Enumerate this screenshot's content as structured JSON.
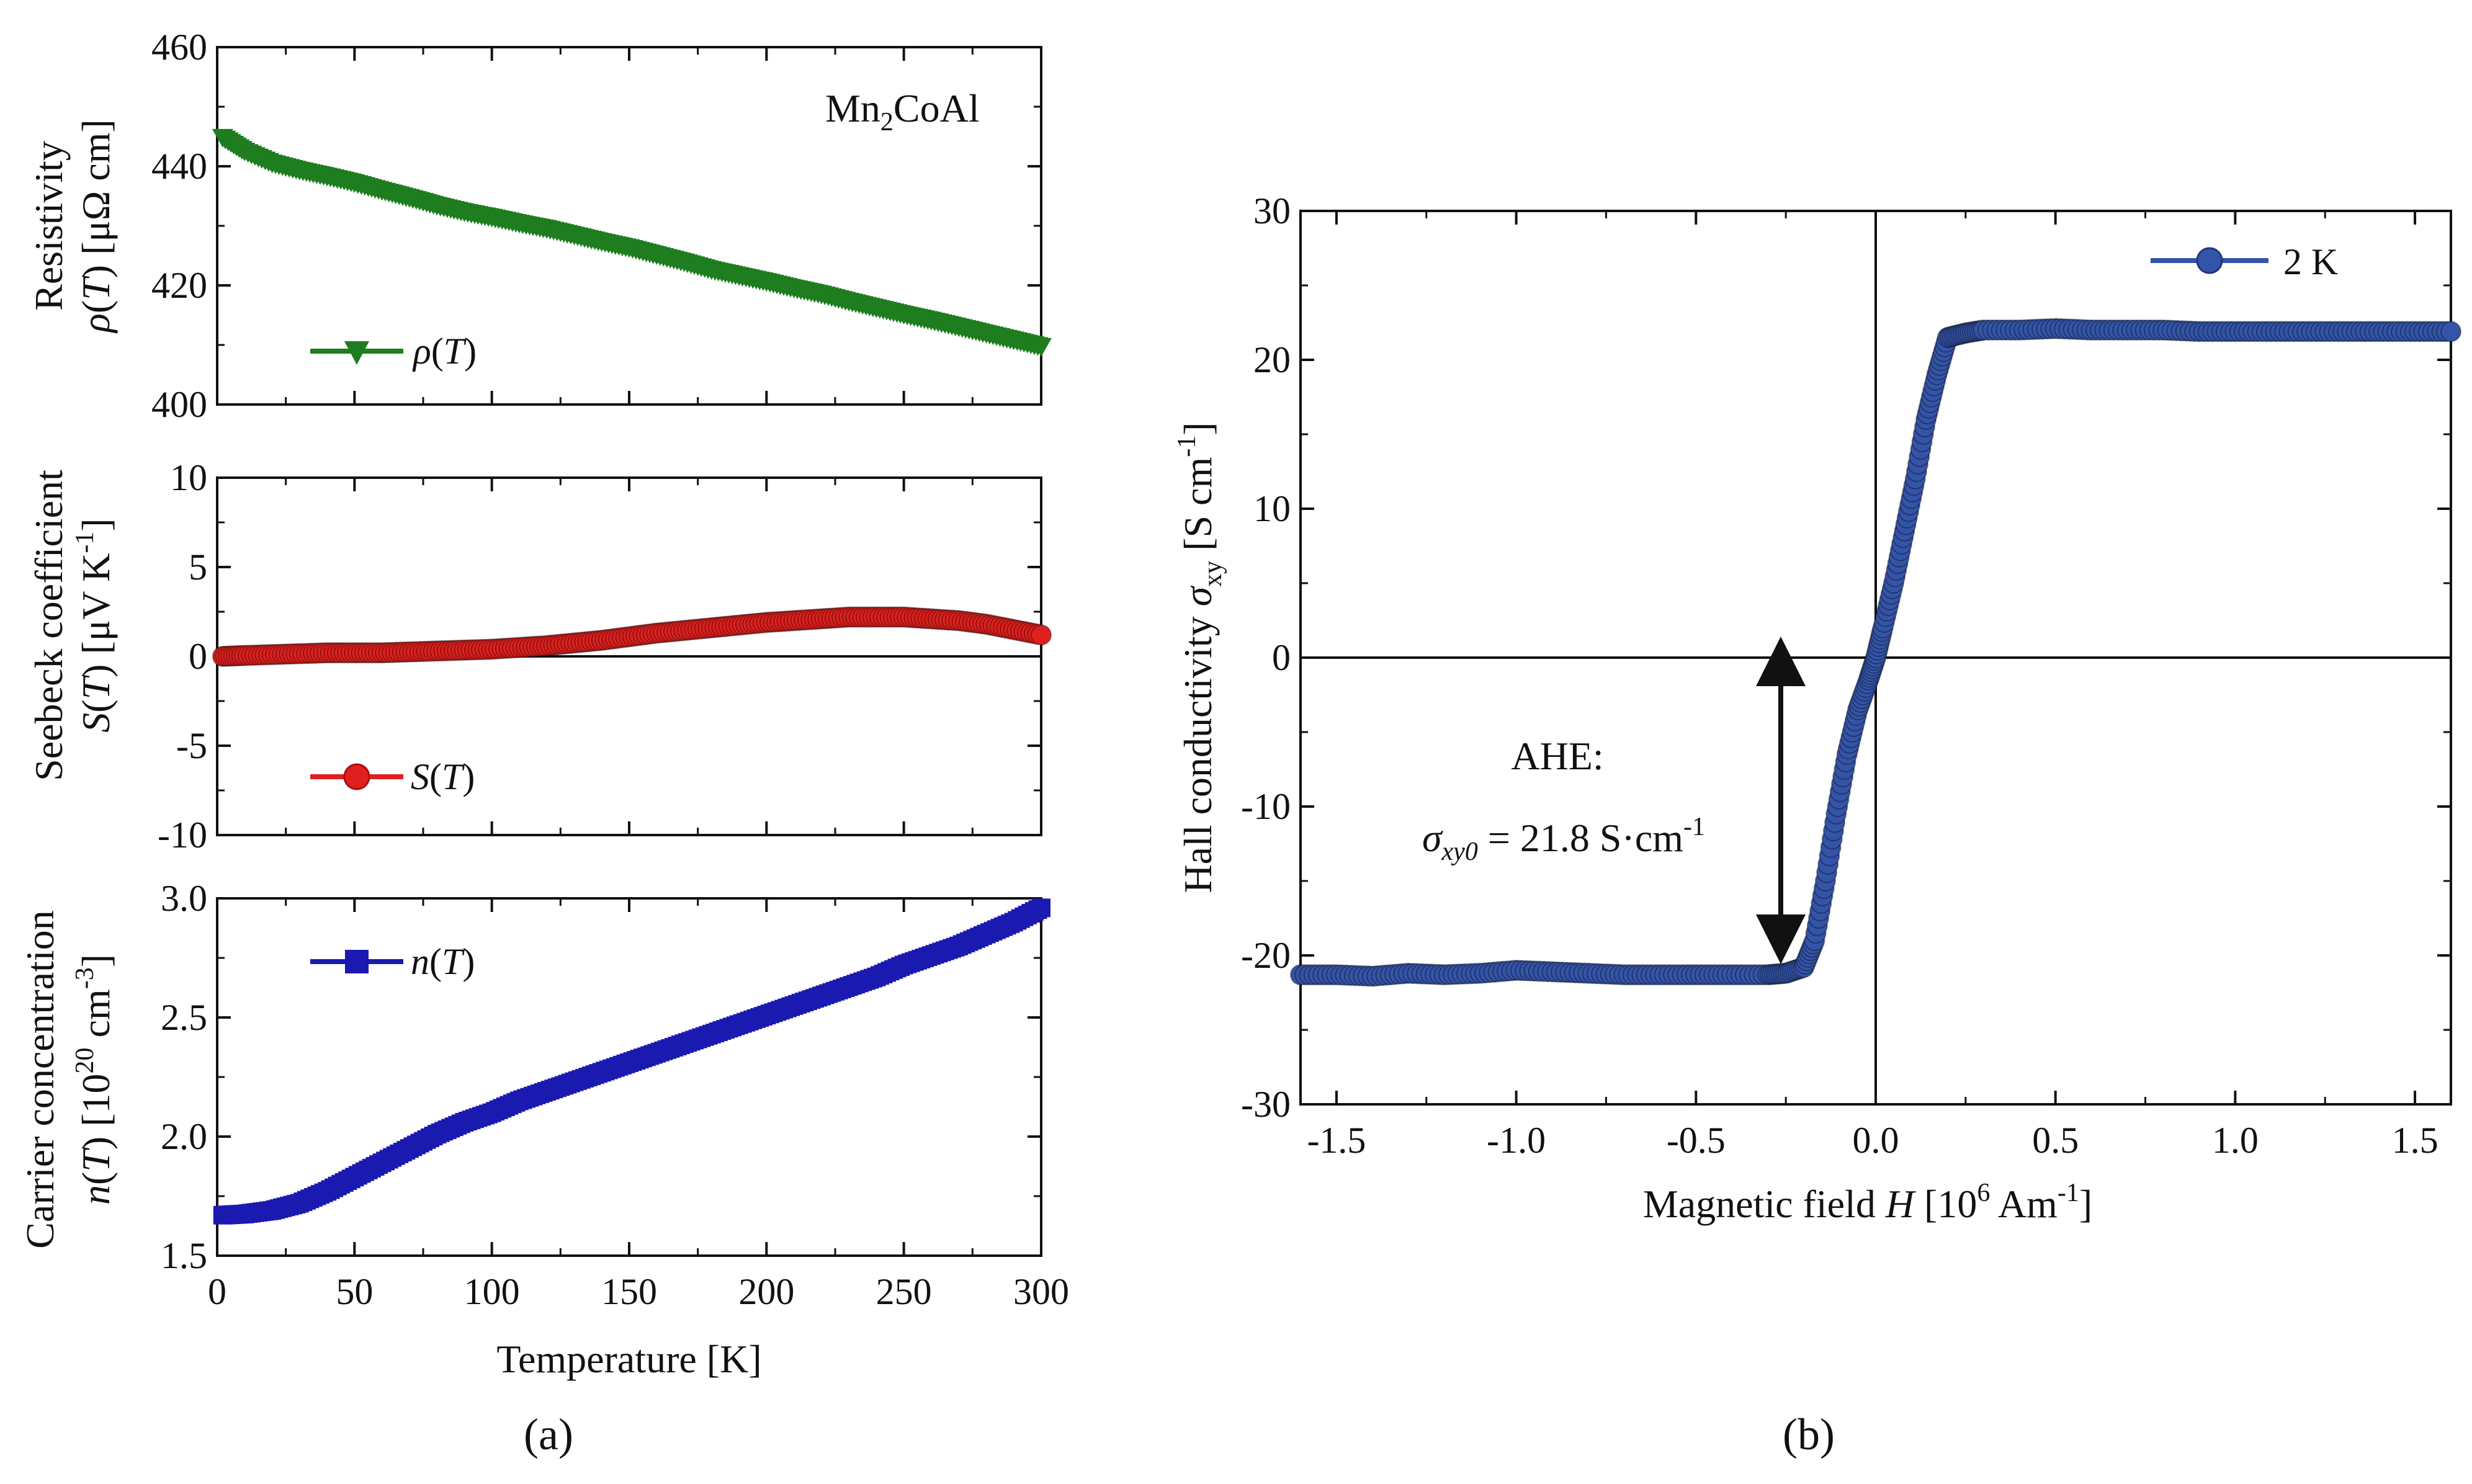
{
  "panel_labels": {
    "a": "(a)",
    "b": "(b)"
  },
  "chart_data": [
    {
      "id": "resistivity",
      "type": "line",
      "material_label": "Mn2CoAl",
      "ylabel": "Resistivity ρ(T) [μΩ cm]",
      "xlabel": "",
      "xlim": [
        0,
        300
      ],
      "ylim": [
        400,
        460
      ],
      "yticks": [
        400,
        420,
        440,
        460
      ],
      "xticks": [
        0,
        50,
        100,
        150,
        200,
        250,
        300
      ],
      "series": [
        {
          "name": "ρ(T)",
          "color": "#1e7d1e",
          "marker": "triangle-down",
          "x": [
            2,
            10,
            20,
            30,
            40,
            50,
            60,
            70,
            80,
            90,
            100,
            110,
            120,
            130,
            140,
            150,
            160,
            170,
            180,
            190,
            200,
            210,
            220,
            230,
            240,
            250,
            260,
            270,
            280,
            290,
            300
          ],
          "y": [
            444.8,
            442.5,
            440.5,
            439.3,
            438.3,
            437.2,
            435.9,
            434.7,
            433.4,
            432.3,
            431.4,
            430.4,
            429.5,
            428.4,
            427.3,
            426.3,
            425.1,
            423.9,
            422.6,
            421.6,
            420.6,
            419.5,
            418.5,
            417.3,
            416.2,
            415.1,
            414.1,
            413.0,
            411.9,
            410.8,
            409.7
          ]
        }
      ]
    },
    {
      "id": "seebeck",
      "type": "line",
      "ylabel": "Seebeck coefficient S(T) [μV K⁻¹]",
      "xlabel": "",
      "xlim": [
        0,
        300
      ],
      "ylim": [
        -10,
        10
      ],
      "yticks": [
        -10,
        -5,
        0,
        5,
        10
      ],
      "yticklabels": [
        "-10",
        "-5",
        "0",
        "5",
        "10"
      ],
      "xticks": [
        0,
        50,
        100,
        150,
        200,
        250,
        300
      ],
      "zero_line": true,
      "series": [
        {
          "name": "S(T)",
          "color": "#e0201e",
          "marker": "circle",
          "x": [
            2,
            10,
            20,
            30,
            40,
            50,
            60,
            70,
            80,
            90,
            100,
            110,
            120,
            130,
            140,
            150,
            160,
            170,
            180,
            190,
            200,
            210,
            220,
            230,
            240,
            250,
            260,
            270,
            280,
            290,
            300
          ],
          "y": [
            0.0,
            0.05,
            0.1,
            0.15,
            0.2,
            0.2,
            0.2,
            0.25,
            0.3,
            0.35,
            0.4,
            0.5,
            0.6,
            0.75,
            0.9,
            1.1,
            1.3,
            1.45,
            1.6,
            1.75,
            1.9,
            2.0,
            2.1,
            2.2,
            2.2,
            2.2,
            2.1,
            2.0,
            1.8,
            1.5,
            1.2
          ]
        }
      ]
    },
    {
      "id": "carrier",
      "type": "line",
      "ylabel": "Carrier concentration n(T) [10²⁰ cm⁻³]",
      "xlabel": "Temperature [K]",
      "xlim": [
        0,
        300
      ],
      "ylim": [
        1.5,
        3.0
      ],
      "yticks": [
        1.5,
        2.0,
        2.5,
        3.0
      ],
      "yticklabels": [
        "1.5",
        "2.0",
        "2.5",
        "3.0"
      ],
      "xticks": [
        0,
        50,
        100,
        150,
        200,
        250,
        300
      ],
      "xticklabels": [
        "0",
        "50",
        "100",
        "150",
        "200",
        "250",
        "300"
      ],
      "series": [
        {
          "name": "n(T)",
          "color": "#1a1ab0",
          "marker": "square",
          "x": [
            2,
            10,
            20,
            30,
            40,
            50,
            60,
            70,
            80,
            90,
            100,
            110,
            120,
            130,
            140,
            150,
            160,
            170,
            180,
            190,
            200,
            210,
            220,
            230,
            240,
            250,
            260,
            270,
            280,
            290,
            300
          ],
          "y": [
            1.67,
            1.675,
            1.69,
            1.72,
            1.77,
            1.83,
            1.89,
            1.95,
            2.01,
            2.06,
            2.1,
            2.15,
            2.19,
            2.23,
            2.27,
            2.31,
            2.35,
            2.39,
            2.43,
            2.47,
            2.51,
            2.55,
            2.59,
            2.63,
            2.67,
            2.72,
            2.76,
            2.8,
            2.85,
            2.9,
            2.96
          ]
        }
      ]
    },
    {
      "id": "hall",
      "type": "line",
      "ylabel": "Hall conductivity σxy [S cm⁻¹]",
      "xlabel": "Magnetic field H [10⁶ Am⁻¹]",
      "xlim": [
        -1.6,
        1.6
      ],
      "ylim": [
        -30,
        30
      ],
      "xticks": [
        -1.5,
        -1.0,
        -0.5,
        0.0,
        0.5,
        1.0,
        1.5
      ],
      "xticklabels": [
        "-1.5",
        "-1.0",
        "-0.5",
        "0.0",
        "0.5",
        "1.0",
        "1.5"
      ],
      "yticks": [
        -30,
        -20,
        -10,
        0,
        10,
        20,
        30
      ],
      "yticklabels": [
        "-30",
        "-20",
        "-10",
        "0",
        "10",
        "20",
        "30"
      ],
      "zero_lines": true,
      "annotation": {
        "title": "AHE:",
        "text": "σxy0 = 21.8 S·cm⁻¹",
        "arrow_x": -0.27,
        "arrow_y": [
          0,
          -21.8
        ]
      },
      "series": [
        {
          "name": "2 K",
          "color": "#3454a8",
          "marker": "circle",
          "x": [
            -1.6,
            -1.5,
            -1.4,
            -1.3,
            -1.2,
            -1.1,
            -1.0,
            -0.9,
            -0.8,
            -0.7,
            -0.6,
            -0.5,
            -0.4,
            -0.3,
            -0.25,
            -0.2,
            -0.17,
            -0.14,
            -0.11,
            -0.08,
            -0.05,
            -0.02,
            0.0,
            0.02,
            0.05,
            0.08,
            0.11,
            0.14,
            0.17,
            0.2,
            0.25,
            0.3,
            0.4,
            0.5,
            0.6,
            0.7,
            0.8,
            0.9,
            1.0,
            1.1,
            1.2,
            1.3,
            1.4,
            1.5,
            1.6
          ],
          "y": [
            -21.3,
            -21.3,
            -21.4,
            -21.2,
            -21.3,
            -21.2,
            -21.0,
            -21.1,
            -21.2,
            -21.3,
            -21.3,
            -21.3,
            -21.3,
            -21.3,
            -21.2,
            -20.8,
            -19.0,
            -15.0,
            -10.5,
            -6.5,
            -3.5,
            -1.5,
            0.0,
            2.0,
            5.0,
            8.5,
            12.0,
            16.0,
            19.0,
            21.5,
            21.8,
            22.0,
            22.0,
            22.1,
            22.0,
            22.0,
            22.0,
            21.9,
            21.9,
            21.9,
            21.9,
            21.9,
            21.9,
            21.9,
            21.9
          ]
        }
      ]
    }
  ]
}
